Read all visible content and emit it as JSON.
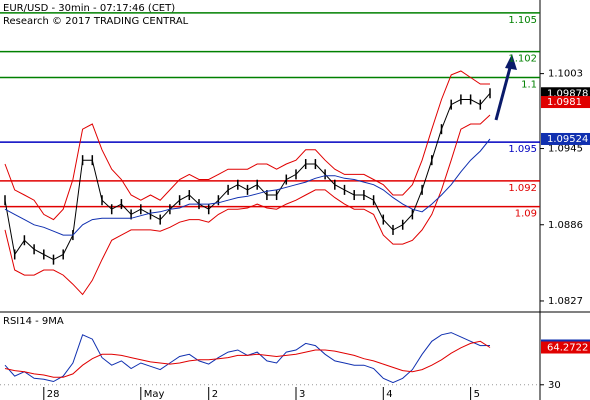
{
  "chart_data": [
    {
      "type": "line",
      "title": "EUR/USD - 30min - 07:17:46 (CET)",
      "subtitle": "Research © 2017 TRADING CENTRAL",
      "categories": [
        null,
        null,
        null,
        null,
        "28",
        null,
        null,
        null,
        null,
        null,
        null,
        null,
        null,
        null,
        "May",
        null,
        null,
        null,
        null,
        null,
        null,
        "2",
        null,
        null,
        null,
        null,
        null,
        null,
        null,
        null,
        "3",
        null,
        null,
        null,
        null,
        null,
        null,
        null,
        null,
        "4",
        null,
        null,
        null,
        null,
        null,
        null,
        null,
        null,
        "5",
        null,
        null
      ],
      "ylim": [
        1.082,
        1.106
      ],
      "yticks": [
        1.1003,
        1.0945,
        1.0886,
        1.0827
      ],
      "series": [
        {
          "color": "#000000",
          "bars": true,
          "tag": true,
          "values": [
            1.0905,
            1.0863,
            1.0874,
            1.0867,
            1.0863,
            1.0859,
            1.0863,
            1.0878,
            1.0936,
            1.0936,
            1.0905,
            1.0898,
            1.0902,
            1.0894,
            1.0898,
            1.0894,
            1.089,
            1.0898,
            1.0905,
            1.0909,
            1.0902,
            1.0898,
            1.0905,
            1.0913,
            1.0917,
            1.0913,
            1.0917,
            1.0909,
            1.0909,
            1.0921,
            1.0925,
            1.0933,
            1.0933,
            1.0925,
            1.0917,
            1.0913,
            1.0909,
            1.0909,
            1.0905,
            1.089,
            1.0882,
            1.0886,
            1.0894,
            1.0913,
            1.0936,
            1.096,
            1.0979,
            1.0983,
            1.0983,
            1.0979,
            1.09878
          ]
        },
        {
          "color": "#e00000",
          "values": [
            1.0933,
            1.0913,
            1.0909,
            1.0905,
            1.0894,
            1.089,
            1.0898,
            1.0921,
            1.096,
            1.0964,
            1.0944,
            1.0929,
            1.0921,
            1.0909,
            1.0905,
            1.0909,
            1.0905,
            1.0913,
            1.0921,
            1.0925,
            1.0921,
            1.0921,
            1.0925,
            1.0929,
            1.0929,
            1.0929,
            1.0933,
            1.0933,
            1.0929,
            1.0933,
            1.0936,
            1.0944,
            1.0944,
            1.0936,
            1.0929,
            1.0925,
            1.0925,
            1.0925,
            1.0921,
            1.0917,
            1.0909,
            1.0909,
            1.0917,
            1.0936,
            1.096,
            1.0983,
            1.1002,
            1.1005,
            1.1,
            1.0995,
            1.0995
          ]
        },
        {
          "color": "#e00000",
          "values": [
            1.0882,
            1.0851,
            1.0847,
            1.0847,
            1.0851,
            1.0851,
            1.0847,
            1.084,
            1.0832,
            1.0843,
            1.0859,
            1.0874,
            1.0878,
            1.0882,
            1.0882,
            1.0882,
            1.0881,
            1.0884,
            1.0888,
            1.089,
            1.089,
            1.0888,
            1.0894,
            1.0898,
            1.0898,
            1.0899,
            1.0902,
            1.0899,
            1.0898,
            1.0902,
            1.0905,
            1.0909,
            1.0913,
            1.0913,
            1.0907,
            1.0902,
            1.0898,
            1.0898,
            1.0894,
            1.0878,
            1.0871,
            1.0871,
            1.0874,
            1.0882,
            1.0894,
            1.0913,
            1.0936,
            1.096,
            1.0964,
            1.0964,
            1.0971
          ]
        },
        {
          "color": "#1030b0",
          "tag": true,
          "values": [
            1.0898,
            1.0894,
            1.089,
            1.0886,
            1.0884,
            1.0881,
            1.0878,
            1.0878,
            1.0886,
            1.089,
            1.0891,
            1.0891,
            1.0891,
            1.0891,
            1.0893,
            1.0895,
            1.0896,
            1.0898,
            1.0899,
            1.0902,
            1.0902,
            1.0902,
            1.0903,
            1.0905,
            1.0907,
            1.0908,
            1.091,
            1.0912,
            1.0913,
            1.0915,
            1.0917,
            1.0919,
            1.0922,
            1.0924,
            1.0924,
            1.0922,
            1.0921,
            1.0919,
            1.0917,
            1.0913,
            1.0907,
            1.0902,
            1.0898,
            1.0896,
            1.0902,
            1.0909,
            1.0917,
            1.0927,
            1.0936,
            1.0943,
            1.09524
          ]
        }
      ],
      "marker": {
        "value": 1.0981,
        "color": "#e00000"
      },
      "levels": [
        {
          "value": 1.105,
          "color": "#008000"
        },
        {
          "value": 1.102,
          "color": "#008000"
        },
        {
          "value": 1.1,
          "color": "#008000"
        },
        {
          "value": 1.095,
          "color": "#0000c0"
        },
        {
          "value": 1.092,
          "color": "#e00000"
        },
        {
          "value": 1.09,
          "color": "#e00000"
        }
      ]
    },
    {
      "type": "line",
      "title": "RSI14 - 9MA",
      "ylim": [
        16,
        96
      ],
      "yticks": [
        30
      ],
      "grid": true,
      "series": [
        {
          "color": "#1030b0",
          "tag": true,
          "values": [
            48,
            38,
            42,
            36,
            35,
            33,
            38,
            50,
            76,
            72,
            55,
            48,
            52,
            45,
            50,
            47,
            44,
            50,
            56,
            58,
            52,
            49,
            55,
            60,
            62,
            57,
            60,
            52,
            50,
            60,
            62,
            68,
            66,
            58,
            52,
            50,
            48,
            48,
            45,
            36,
            32,
            36,
            44,
            58,
            70,
            76,
            78,
            74,
            70,
            66,
            66.1262
          ]
        },
        {
          "color": "#e00000",
          "tag": true,
          "values": [
            45,
            43,
            42,
            40,
            39,
            37,
            37,
            40,
            48,
            54,
            58,
            58,
            57,
            55,
            53,
            51,
            50,
            49,
            50,
            52,
            53,
            53,
            54,
            55,
            57,
            57,
            58,
            57,
            56,
            57,
            58,
            60,
            62,
            62,
            61,
            59,
            57,
            54,
            52,
            49,
            46,
            43,
            42,
            44,
            48,
            53,
            59,
            64,
            68,
            70,
            64.2722
          ]
        }
      ]
    }
  ]
}
